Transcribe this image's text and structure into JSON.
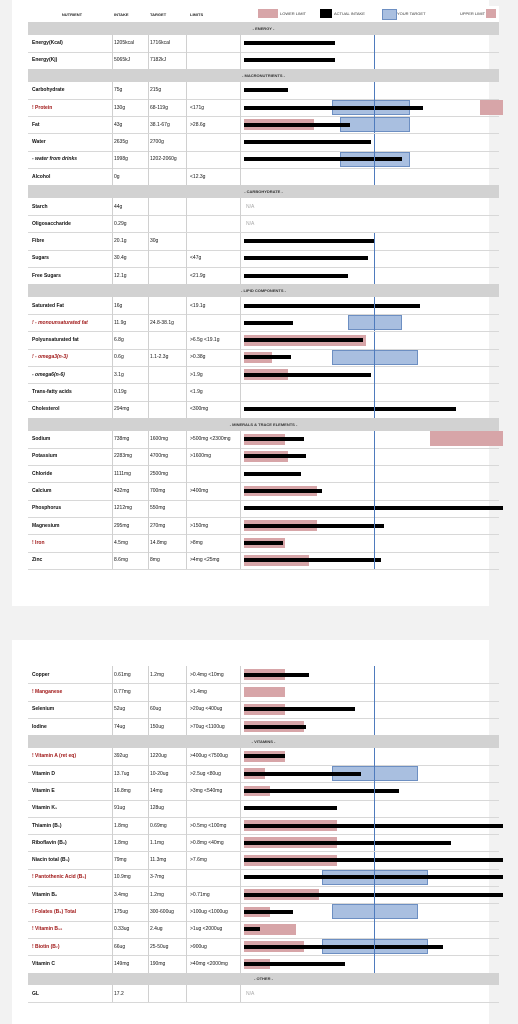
{
  "header": {
    "nutrient": "NUTRIENT",
    "intake": "INTAKE",
    "target": "TARGET",
    "limits": "LIMITS"
  },
  "legend": {
    "lower_limit": "LOWER LIMIT",
    "actual_intake": "ACTUAL INTAKE",
    "your_target": "YOUR TARGET",
    "upper_limit": "UPPER LIMIT"
  },
  "colors": {
    "lower_limit": "#d7a5a8",
    "actual_intake": "#000000",
    "your_target": "#a9bfe0",
    "upper_limit": "#d7a5a8",
    "warning_text": "#a01818",
    "section_bg": "#d2d2d2"
  },
  "page1": [
    {
      "type": "section",
      "label": "- ENERGY -"
    },
    {
      "type": "row",
      "name": "Energy(Kcal)",
      "intake": "1205kcal",
      "target": "1716kcal",
      "limits": "",
      "bars": {
        "actual": [
          0,
          0.35
        ]
      }
    },
    {
      "type": "row",
      "name": "Energy(Kj)",
      "intake": "5065kJ",
      "target": "7182kJ",
      "limits": "",
      "bars": {
        "actual": [
          0,
          0.35
        ]
      }
    },
    {
      "type": "section",
      "label": "- MACRONUTRIENTS -"
    },
    {
      "type": "row",
      "name": "Carbohydrate",
      "intake": "75g",
      "target": "215g",
      "limits": "",
      "bars": {
        "actual": [
          0,
          0.17
        ]
      }
    },
    {
      "type": "row",
      "name": "! Protein",
      "warn": true,
      "intake": "130g",
      "target": "68-119g",
      "limits": "<171g",
      "bars": {
        "target": [
          0.34,
          0.64
        ],
        "actual": [
          0,
          0.69
        ],
        "upper": [
          0.91,
          1
        ]
      }
    },
    {
      "type": "row",
      "name": "Fat",
      "intake": "43g",
      "target": "38.1-67g",
      "limits": ">28.6g",
      "bars": {
        "lower": [
          0,
          0.27
        ],
        "target": [
          0.37,
          0.64
        ],
        "actual": [
          0,
          0.41
        ]
      }
    },
    {
      "type": "row",
      "name": "Water",
      "intake": "2635g",
      "target": "2700g",
      "limits": "",
      "bars": {
        "actual": [
          0,
          0.49
        ]
      }
    },
    {
      "type": "row",
      "name": "- water from drinks",
      "ital": true,
      "intake": "1998g",
      "target": "1202-2060g",
      "limits": "",
      "bars": {
        "target": [
          0.37,
          0.64
        ],
        "actual": [
          0,
          0.61
        ]
      }
    },
    {
      "type": "row",
      "name": "Alcohol",
      "intake": "0g",
      "target": "",
      "limits": "<12.3g",
      "bars": {}
    },
    {
      "type": "section",
      "label": "- CARBOHYDRATE -"
    },
    {
      "type": "row",
      "name": "Starch",
      "intake": "44g",
      "target": "",
      "limits": "",
      "na": "N/A",
      "bars": {}
    },
    {
      "type": "row",
      "name": "Oligosaccharide",
      "intake": "0.29g",
      "target": "",
      "limits": "",
      "na": "N/A",
      "bars": {}
    },
    {
      "type": "row",
      "name": "Fibre",
      "intake": "20.1g",
      "target": "30g",
      "limits": "",
      "bars": {
        "actual": [
          0,
          0.5
        ]
      }
    },
    {
      "type": "row",
      "name": "Sugars",
      "intake": "30.4g",
      "target": "",
      "limits": "<47g",
      "bars": {
        "actual": [
          0,
          0.48
        ]
      }
    },
    {
      "type": "row",
      "name": "Free Sugars",
      "intake": "12.1g",
      "target": "",
      "limits": "<21.9g",
      "bars": {
        "actual": [
          0,
          0.4
        ]
      }
    },
    {
      "type": "section",
      "label": "- LIPID COMPONENTS -"
    },
    {
      "type": "row",
      "name": "Saturated Fat",
      "intake": "16g",
      "target": "",
      "limits": "<19.1g",
      "bars": {
        "actual": [
          0,
          0.68
        ]
      }
    },
    {
      "type": "row",
      "name": "! - monounsaturated fat",
      "warn": true,
      "ital": true,
      "intake": "11.9g",
      "target": "24.8-38.1g",
      "limits": "",
      "bars": {
        "target": [
          0.4,
          0.61
        ],
        "actual": [
          0,
          0.19
        ]
      }
    },
    {
      "type": "row",
      "name": "Polyunsaturated fat",
      "intake": "6.8g",
      "target": "",
      "limits": ">6.5g <19.1g",
      "bars": {
        "lower": [
          0,
          0.47
        ],
        "actual": [
          0,
          0.46
        ]
      }
    },
    {
      "type": "row",
      "name": "! - omega3(n-3)",
      "warn": true,
      "ital": true,
      "intake": "0.6g",
      "target": "1.1-2.3g",
      "limits": ">0.38g",
      "bars": {
        "lower": [
          0,
          0.11
        ],
        "target": [
          0.34,
          0.67
        ],
        "actual": [
          0,
          0.18
        ]
      }
    },
    {
      "type": "row",
      "name": "- omega6(n-6)",
      "ital": true,
      "intake": "3.1g",
      "target": "",
      "limits": ">1.9g",
      "bars": {
        "lower": [
          0,
          0.17
        ],
        "actual": [
          0,
          0.49
        ]
      }
    },
    {
      "type": "row",
      "name": "Trans-fatty acids",
      "intake": "0.19g",
      "target": "",
      "limits": "<1.9g",
      "bars": {}
    },
    {
      "type": "row",
      "name": "Cholesterol",
      "intake": "294mg",
      "target": "",
      "limits": "<300mg",
      "bars": {
        "actual": [
          0,
          0.82
        ]
      }
    },
    {
      "type": "section",
      "label": "- MINERALS & TRACE ELEMENTS -"
    },
    {
      "type": "row",
      "name": "Sodium",
      "intake": "738mg",
      "target": "1600mg",
      "limits": ">500mg <2300mg",
      "bars": {
        "lower": [
          0,
          0.16
        ],
        "actual": [
          0,
          0.23
        ],
        "upper": [
          0.72,
          1
        ]
      }
    },
    {
      "type": "row",
      "name": "Potassium",
      "intake": "2283mg",
      "target": "4700mg",
      "limits": ">1600mg",
      "bars": {
        "lower": [
          0,
          0.17
        ],
        "actual": [
          0,
          0.24
        ]
      }
    },
    {
      "type": "row",
      "name": "Chloride",
      "intake": "1111mg",
      "target": "2500mg",
      "limits": "",
      "bars": {
        "actual": [
          0,
          0.22
        ]
      }
    },
    {
      "type": "row",
      "name": "Calcium",
      "intake": "432mg",
      "target": "700mg",
      "limits": ">400mg",
      "bars": {
        "lower": [
          0,
          0.28
        ],
        "actual": [
          0,
          0.3
        ]
      }
    },
    {
      "type": "row",
      "name": "Phosphorus",
      "intake": "1212mg",
      "target": "550mg",
      "limits": "",
      "bars": {
        "actual": [
          0,
          1
        ]
      }
    },
    {
      "type": "row",
      "name": "Magnesium",
      "intake": "295mg",
      "target": "270mg",
      "limits": ">150mg",
      "bars": {
        "lower": [
          0,
          0.28
        ],
        "actual": [
          0,
          0.54
        ]
      }
    },
    {
      "type": "row",
      "name": "! Iron",
      "warn": true,
      "intake": "4.5mg",
      "target": "14.8mg",
      "limits": ">8mg",
      "bars": {
        "lower": [
          0,
          0.16
        ],
        "actual": [
          0,
          0.15
        ]
      }
    },
    {
      "type": "row",
      "name": "Zinc",
      "intake": "8.6mg",
      "target": "8mg",
      "limits": ">4mg <25mg",
      "bars": {
        "lower": [
          0,
          0.25
        ],
        "actual": [
          0,
          0.53
        ]
      }
    }
  ],
  "page2": [
    {
      "type": "row",
      "name": "Copper",
      "intake": "0.61mg",
      "target": "1.2mg",
      "limits": ">0.4mg <10mg",
      "bars": {
        "lower": [
          0,
          0.16
        ],
        "actual": [
          0,
          0.25
        ]
      }
    },
    {
      "type": "row",
      "name": "! Manganese",
      "warn": true,
      "intake": "0.77mg",
      "target": "",
      "limits": ">1.4mg",
      "bars": {
        "lower": [
          0,
          0.16
        ]
      }
    },
    {
      "type": "row",
      "name": "Selenium",
      "intake": "52ug",
      "target": "60ug",
      "limits": ">20ug <400ug",
      "bars": {
        "lower": [
          0,
          0.16
        ],
        "actual": [
          0,
          0.43
        ]
      }
    },
    {
      "type": "row",
      "name": "Iodine",
      "intake": "74ug",
      "target": "150ug",
      "limits": ">70ug <1100ug",
      "bars": {
        "lower": [
          0,
          0.23
        ],
        "actual": [
          0,
          0.24
        ]
      }
    },
    {
      "type": "section",
      "label": "- VITAMINS -"
    },
    {
      "type": "row",
      "name": "! Vitamin A (ret eq)",
      "warn": true,
      "intake": "392ug",
      "target": "1220ug",
      "limits": ">400ug <7500ug",
      "bars": {
        "lower": [
          0,
          0.16
        ],
        "actual": [
          0,
          0.16
        ]
      }
    },
    {
      "type": "row",
      "name": "Vitamin D",
      "intake": "13.7ug",
      "target": "10-20ug",
      "limits": ">2.5ug <80ug",
      "bars": {
        "lower": [
          0,
          0.08
        ],
        "target": [
          0.34,
          0.67
        ],
        "actual": [
          0,
          0.45
        ]
      }
    },
    {
      "type": "row",
      "name": "Vitamin E",
      "intake": "16.8mg",
      "target": "14mg",
      "limits": ">3mg <540mg",
      "bars": {
        "lower": [
          0,
          0.1
        ],
        "actual": [
          0,
          0.6
        ]
      }
    },
    {
      "type": "row",
      "name": "Vitamin K₁",
      "intake": "91ug",
      "target": "128ug",
      "limits": "",
      "bars": {
        "actual": [
          0,
          0.36
        ]
      }
    },
    {
      "type": "row",
      "name": "Thiamin (B₁)",
      "intake": "1.8mg",
      "target": "0.69mg",
      "limits": ">0.5mg <100mg",
      "bars": {
        "lower": [
          0,
          0.36
        ],
        "actual": [
          0,
          1
        ]
      }
    },
    {
      "type": "row",
      "name": "Riboflavin (B₂)",
      "intake": "1.8mg",
      "target": "1.1mg",
      "limits": ">0.8mg <40mg",
      "bars": {
        "lower": [
          0,
          0.36
        ],
        "actual": [
          0,
          0.8
        ]
      }
    },
    {
      "type": "row",
      "name": "Niacin total (B₃)",
      "intake": "79mg",
      "target": "11.3mg",
      "limits": ">7.6mg",
      "bars": {
        "lower": [
          0,
          0.36
        ],
        "actual": [
          0,
          1
        ]
      }
    },
    {
      "type": "row",
      "name": "! Pantothenic Acid (B₅)",
      "warn": true,
      "intake": "10.9mg",
      "target": "3-7mg",
      "limits": "",
      "bars": {
        "target": [
          0.3,
          0.71
        ],
        "actual": [
          0,
          1
        ]
      }
    },
    {
      "type": "row",
      "name": "Vitamin B₆",
      "intake": "3.4mg",
      "target": "1.2mg",
      "limits": ">0.71mg",
      "bars": {
        "lower": [
          0,
          0.29
        ],
        "actual": [
          0,
          1
        ]
      }
    },
    {
      "type": "row",
      "name": "! Folates (B₉) Total",
      "warn": true,
      "intake": "175ug",
      "target": "300-600ug",
      "limits": ">100ug <1000ug",
      "bars": {
        "lower": [
          0,
          0.1
        ],
        "target": [
          0.34,
          0.67
        ],
        "actual": [
          0,
          0.19
        ]
      }
    },
    {
      "type": "row",
      "name": "! Vitamin B₁₂",
      "warn": true,
      "intake": "0.33ug",
      "target": "2.4ug",
      "limits": ">1ug <2000ug",
      "bars": {
        "lower": [
          0,
          0.2
        ],
        "actual": [
          0,
          0.06
        ]
      }
    },
    {
      "type": "row",
      "name": "! Biotin (B₇)",
      "warn": true,
      "intake": "66ug",
      "target": "25-50ug",
      "limits": ">900ug",
      "bars": {
        "lower": [
          0,
          0.23
        ],
        "target": [
          0.3,
          0.71
        ],
        "actual": [
          0,
          0.77
        ]
      }
    },
    {
      "type": "row",
      "name": "Vitamin C",
      "intake": "149mg",
      "target": "190mg",
      "limits": ">40mg <2000mg",
      "bars": {
        "lower": [
          0,
          0.1
        ],
        "actual": [
          0,
          0.39
        ]
      }
    },
    {
      "type": "section",
      "label": "- OTHER -"
    },
    {
      "type": "row",
      "name": "GL",
      "intake": "17.2",
      "target": "",
      "limits": "",
      "na": "N/A",
      "bars": {}
    }
  ]
}
